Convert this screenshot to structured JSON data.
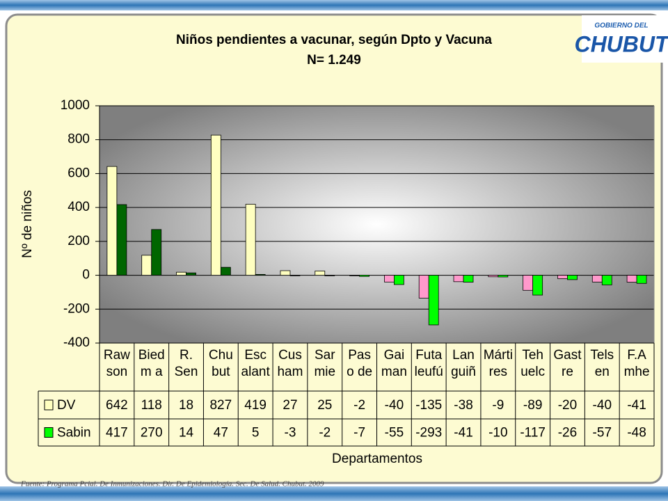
{
  "chart_data": {
    "type": "bar",
    "title": "Niños pendientes a vacunar, según Dpto y Vacuna",
    "subtitle": "N= 1.249",
    "y_label": "Nº de niños",
    "x_label": "Departamentos",
    "categories": [
      "Raw\nson",
      "Bied\nm a",
      "R.\nSen",
      "Chu\nbut",
      "Esc\nalant",
      "Cus\nham",
      "Sar\nmie",
      "Pas\no de",
      "Gai\nman",
      "Futa\nleufú",
      "Lan\nguiñ",
      "Márti\nres",
      "Teh\nuelc",
      "Gast\nre",
      "Tels\nen",
      "F.A\nmhe"
    ],
    "series": [
      {
        "name": "DV",
        "color": "#ffffc0",
        "negative_color": "#ff99cc",
        "values": [
          642,
          118,
          18,
          827,
          419,
          27,
          25,
          -2,
          -40,
          -135,
          -38,
          -9,
          -89,
          -20,
          -40,
          -41
        ]
      },
      {
        "name": "Sabin",
        "color": "#006600",
        "negative_color": "#00ff00",
        "values": [
          417,
          270,
          14,
          47,
          5,
          -3,
          -2,
          -7,
          -55,
          -293,
          -41,
          -10,
          -117,
          -26,
          -57,
          -48
        ]
      }
    ],
    "ylim": [
      -400,
      1000
    ],
    "yticks": [
      -400,
      -200,
      0,
      200,
      400,
      600,
      800,
      1000
    ],
    "grid": true,
    "footer": "Fuente: Programa Pcial. De Inmunizaciones. Dir. De Epidemiología. Sec. De Salud. Chubut. 2009",
    "logo": {
      "top": "GOBIERNO DEL",
      "main": "CHUBUT"
    }
  }
}
